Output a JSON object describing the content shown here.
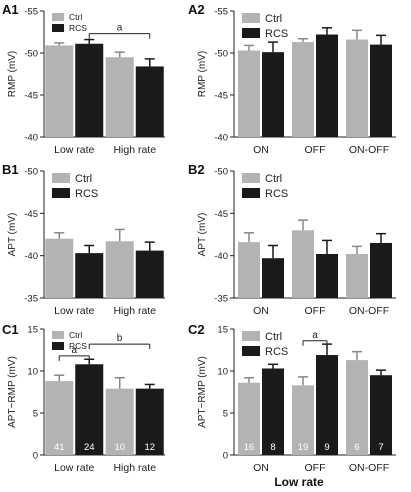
{
  "colors": {
    "ctrl": "#b3b3b3",
    "rcs": "#1a1a1a",
    "axis": "#222222"
  },
  "xaxis_title": "Low rate",
  "chart_data": [
    {
      "id": "A1",
      "panel_label": "A1",
      "type": "bar",
      "ylabel": "RMP (mV)",
      "ylim": [
        -40,
        -55
      ],
      "yticks": [
        -55,
        -50,
        -45,
        -40
      ],
      "categories": [
        "Low rate",
        "High rate"
      ],
      "series": [
        {
          "name": "Ctrl",
          "color": "#b3b3b3",
          "values": [
            -50.9,
            -49.5
          ],
          "errors": [
            0.3,
            0.6
          ]
        },
        {
          "name": "RCS",
          "color": "#1a1a1a",
          "values": [
            -51.1,
            -48.4
          ],
          "errors": [
            0.5,
            0.9
          ]
        }
      ],
      "legend": {
        "placement": "top-left",
        "font_size": "small"
      },
      "annotations": [
        {
          "text": "a",
          "from": [
            0,
            1
          ],
          "to": [
            1,
            1
          ],
          "level": -52.3
        }
      ],
      "counts": null
    },
    {
      "id": "A2",
      "panel_label": "A2",
      "type": "bar",
      "ylabel": "RMP (mV)",
      "ylim": [
        -40,
        -55
      ],
      "yticks": [
        -55,
        -50,
        -45,
        -40
      ],
      "categories": [
        "ON",
        "OFF",
        "ON-OFF"
      ],
      "series": [
        {
          "name": "Ctrl",
          "color": "#b3b3b3",
          "values": [
            -50.3,
            -51.3,
            -51.6
          ],
          "errors": [
            0.6,
            0.4,
            1.1
          ]
        },
        {
          "name": "RCS",
          "color": "#1a1a1a",
          "values": [
            -50.1,
            -52.2,
            -51.0
          ],
          "errors": [
            1.2,
            0.8,
            1.1
          ]
        }
      ],
      "legend": {
        "placement": "top-left",
        "font_size": "normal"
      },
      "annotations": [],
      "counts": null
    },
    {
      "id": "B1",
      "panel_label": "B1",
      "type": "bar",
      "ylabel": "APT (mV)",
      "ylim": [
        -35,
        -50
      ],
      "yticks": [
        -50,
        -45,
        -40,
        -35
      ],
      "categories": [
        "Low rate",
        "High rate"
      ],
      "series": [
        {
          "name": "Ctrl",
          "color": "#b3b3b3",
          "values": [
            -42.0,
            -41.7
          ],
          "errors": [
            0.7,
            1.4
          ]
        },
        {
          "name": "RCS",
          "color": "#1a1a1a",
          "values": [
            -40.3,
            -40.6
          ],
          "errors": [
            0.9,
            1.0
          ]
        }
      ],
      "legend": {
        "placement": "top-left",
        "font_size": "normal"
      },
      "annotations": [],
      "counts": null
    },
    {
      "id": "B2",
      "panel_label": "B2",
      "type": "bar",
      "ylabel": "APT (mV)",
      "ylim": [
        -35,
        -50
      ],
      "yticks": [
        -50,
        -45,
        -40,
        -35
      ],
      "categories": [
        "ON",
        "OFF",
        "ON-OFF"
      ],
      "series": [
        {
          "name": "Ctrl",
          "color": "#b3b3b3",
          "values": [
            -41.6,
            -43.0,
            -40.2
          ],
          "errors": [
            1.1,
            1.2,
            0.9
          ]
        },
        {
          "name": "RCS",
          "color": "#1a1a1a",
          "values": [
            -39.7,
            -40.2,
            -41.5
          ],
          "errors": [
            1.5,
            1.6,
            1.1
          ]
        }
      ],
      "legend": {
        "placement": "top-left",
        "font_size": "normal"
      },
      "annotations": [],
      "counts": null
    },
    {
      "id": "C1",
      "panel_label": "C1",
      "type": "bar",
      "ylabel": "APT−RMP (mV)",
      "ylim": [
        0,
        15
      ],
      "yticks": [
        0,
        5,
        10,
        15
      ],
      "categories": [
        "Low rate",
        "High rate"
      ],
      "series": [
        {
          "name": "Ctrl",
          "color": "#b3b3b3",
          "values": [
            8.8,
            7.9
          ],
          "errors": [
            0.7,
            1.3
          ]
        },
        {
          "name": "RCS",
          "color": "#1a1a1a",
          "values": [
            10.8,
            7.9
          ],
          "errors": [
            0.6,
            0.5
          ]
        }
      ],
      "legend": {
        "placement": "top-left",
        "font_size": "small"
      },
      "annotations": [
        {
          "text": "a",
          "from": [
            0,
            0
          ],
          "to": [
            0,
            1
          ],
          "level": 11.8
        },
        {
          "text": "b",
          "from": [
            0,
            1
          ],
          "to": [
            1,
            1
          ],
          "level": 13.2
        }
      ],
      "counts": [
        [
          "41",
          "10"
        ],
        [
          "24",
          "12"
        ]
      ]
    },
    {
      "id": "C2",
      "panel_label": "C2",
      "type": "bar",
      "ylabel": "APT−RMP (mV)",
      "ylim": [
        0,
        15
      ],
      "yticks": [
        0,
        5,
        10,
        15
      ],
      "categories": [
        "ON",
        "OFF",
        "ON-OFF"
      ],
      "series": [
        {
          "name": "Ctrl",
          "color": "#b3b3b3",
          "values": [
            8.6,
            8.3,
            11.3
          ],
          "errors": [
            0.6,
            1.0,
            1.0
          ]
        },
        {
          "name": "RCS",
          "color": "#1a1a1a",
          "values": [
            10.3,
            11.9,
            9.5
          ],
          "errors": [
            0.5,
            1.3,
            0.6
          ]
        }
      ],
      "legend": {
        "placement": "top-left",
        "font_size": "normal"
      },
      "annotations": [
        {
          "text": "a",
          "from": [
            1,
            0
          ],
          "to": [
            1,
            1
          ],
          "level": 13.6
        }
      ],
      "counts": [
        [
          "16",
          "19",
          "6"
        ],
        [
          "8",
          "9",
          "7"
        ]
      ]
    }
  ]
}
